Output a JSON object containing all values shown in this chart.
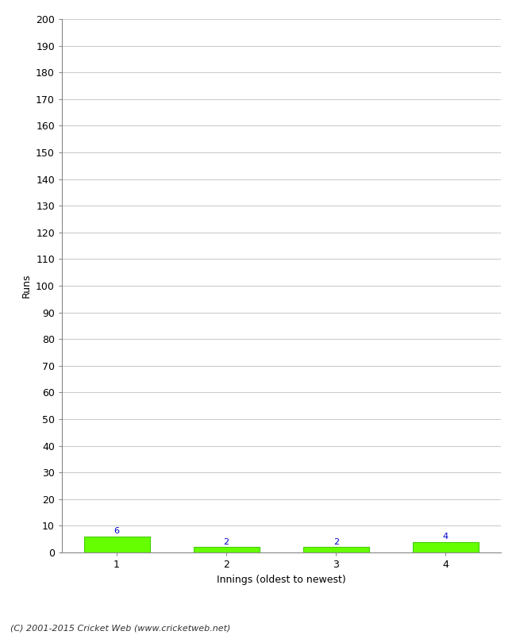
{
  "categories": [
    1,
    2,
    3,
    4
  ],
  "values": [
    6,
    2,
    2,
    4
  ],
  "bar_color": "#66ff00",
  "bar_edge_color": "#44cc00",
  "xlabel": "Innings (oldest to newest)",
  "ylabel": "Runs",
  "ylim": [
    0,
    200
  ],
  "yticks": [
    0,
    10,
    20,
    30,
    40,
    50,
    60,
    70,
    80,
    90,
    100,
    110,
    120,
    130,
    140,
    150,
    160,
    170,
    180,
    190,
    200
  ],
  "label_color": "#0000cc",
  "label_fontsize": 8,
  "footer": "(C) 2001-2015 Cricket Web (www.cricketweb.net)",
  "background_color": "#ffffff",
  "grid_color": "#cccccc",
  "tick_fontsize": 9,
  "axis_label_fontsize": 9,
  "footer_fontsize": 8
}
